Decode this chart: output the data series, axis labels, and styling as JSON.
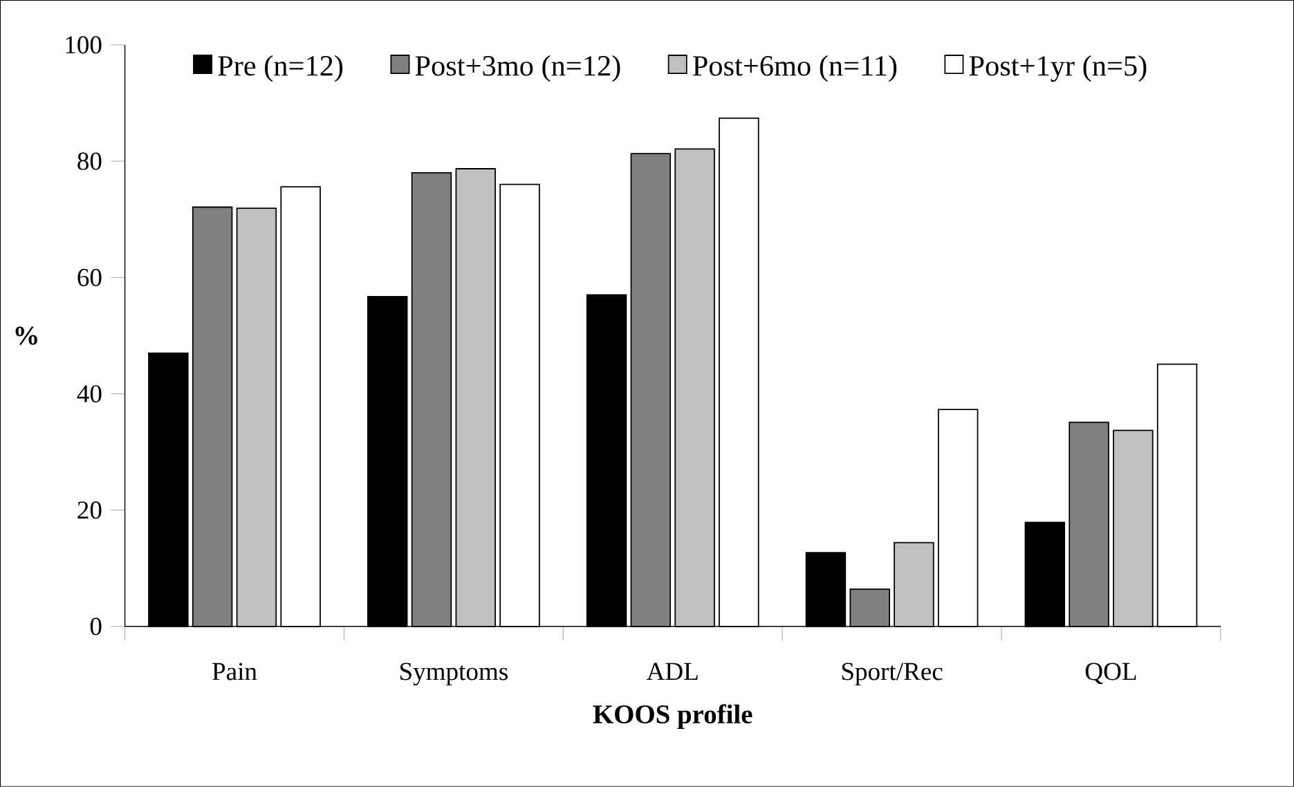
{
  "chart_data": {
    "type": "bar",
    "xlabel": "KOOS profile",
    "ylabel": "%",
    "categories": [
      "Pain",
      "Symptoms",
      "ADL",
      "Sport/Rec",
      "QOL"
    ],
    "series": [
      {
        "name": "Pre (n=12)",
        "color": "#000000",
        "values": [
          47.0,
          56.7,
          57.0,
          12.7,
          17.9
        ]
      },
      {
        "name": "Post+3mo (n=12)",
        "color": "#808080",
        "values": [
          72.1,
          78.0,
          81.3,
          6.4,
          35.1
        ]
      },
      {
        "name": "Post+6mo (n=11)",
        "color": "#c0c0c0",
        "values": [
          71.9,
          78.7,
          82.1,
          14.4,
          33.7
        ]
      },
      {
        "name": "Post+1yr (n=5)",
        "color": "#ffffff",
        "values": [
          75.6,
          76.0,
          87.4,
          37.3,
          45.1
        ]
      }
    ],
    "ylim": [
      0,
      100
    ],
    "yticks": [
      0,
      20,
      40,
      60,
      80,
      100
    ],
    "grid": false,
    "legend": "top"
  }
}
